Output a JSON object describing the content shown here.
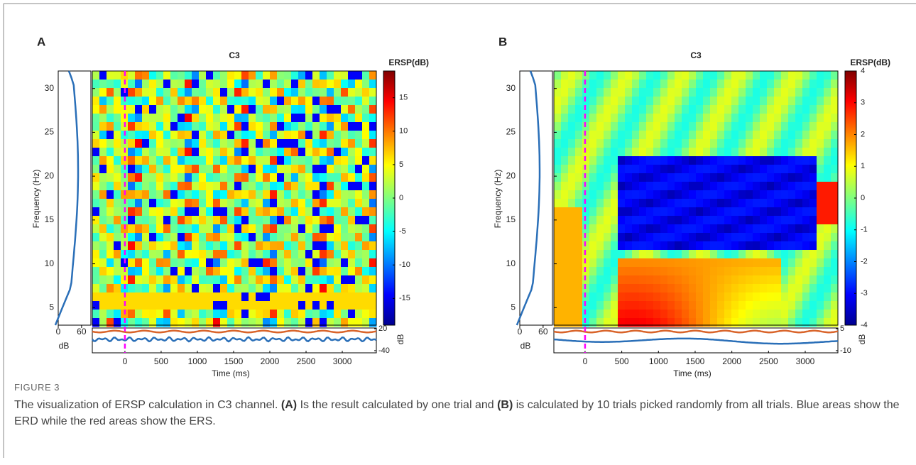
{
  "panels": [
    {
      "label": "A",
      "title": "C3",
      "colorbar_label": "ERSP(dB)",
      "colorbar_unit": "dB",
      "y_label": "Frequency (Hz)",
      "x_label": "Time (ms)",
      "xlim": [
        -450,
        3470
      ],
      "xticks": [
        0,
        500,
        1000,
        1500,
        2000,
        2500,
        3000
      ],
      "ylim": [
        3,
        32
      ],
      "yticks": [
        5,
        10,
        15,
        20,
        25,
        30
      ],
      "clim": [
        -19,
        19
      ],
      "cticks": [
        15,
        10,
        5,
        0,
        -5,
        -10,
        -15
      ],
      "side_label": "dB",
      "side_xlim": [
        0,
        84
      ],
      "side_ticks": [
        0,
        60
      ],
      "strip_ylim": [
        -46,
        22
      ],
      "strip_ticks": [
        20,
        -40
      ]
    },
    {
      "label": "B",
      "title": "C3",
      "colorbar_label": "ERSP(dB)",
      "colorbar_unit": "dB",
      "y_label": "Frequency (Hz)",
      "x_label": "Time (ms)",
      "xlim": [
        -425,
        3445
      ],
      "xticks": [
        0,
        500,
        1000,
        1500,
        2000,
        2500,
        3000
      ],
      "ylim": [
        3,
        32
      ],
      "yticks": [
        5,
        10,
        15,
        20,
        25,
        30
      ],
      "clim": [
        -4,
        4
      ],
      "cticks": [
        4,
        3,
        2,
        1,
        0,
        -1,
        -2,
        -3,
        -4
      ],
      "side_label": "dB",
      "side_xlim": [
        0,
        84
      ],
      "side_ticks": [
        0,
        60
      ],
      "strip_ylim": [
        -11.5,
        5.5
      ],
      "strip_ticks": [
        5,
        -10
      ]
    }
  ],
  "caption": {
    "label": "FIGURE 3",
    "parts": [
      "The visualization of ERSP calculation in C3 channel. ",
      "(A)",
      " Is the result calculated by one trial and ",
      "(B)",
      " is calculated by 10 trials picked randomly from all trials. Blue areas show the ERD while the red areas show the ERS."
    ]
  }
}
